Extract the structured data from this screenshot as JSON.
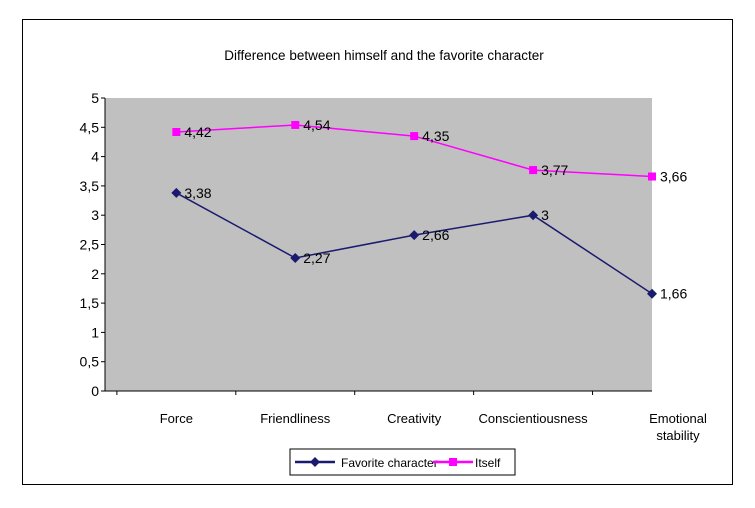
{
  "chart_data": {
    "type": "line",
    "title": "Difference between himself and the favorite character",
    "categories": [
      "Force",
      "Friendliness",
      "Creativity",
      "Conscientiousness",
      "Emotional stability"
    ],
    "series": [
      {
        "name": "Favorite character",
        "values": [
          3.38,
          2.27,
          2.66,
          3,
          1.66
        ],
        "labels": [
          "3,38",
          "2,27",
          "2,66",
          "3",
          "1,66"
        ],
        "color": "#1a1a6e",
        "marker": "diamond"
      },
      {
        "name": "Itself",
        "values": [
          4.42,
          4.54,
          4.35,
          3.77,
          3.66
        ],
        "labels": [
          "4,42",
          "4,54",
          "4,35",
          "3,77",
          "3,66"
        ],
        "color": "#ff00ff",
        "marker": "square"
      }
    ],
    "y_ticks": [
      "0",
      "0,5",
      "1",
      "1,5",
      "2",
      "2,5",
      "3",
      "3,5",
      "4",
      "4,5",
      "5"
    ],
    "ylim": [
      0,
      5
    ],
    "grid": false,
    "plot_background": "#c0c0c0",
    "legend_position": "bottom"
  }
}
